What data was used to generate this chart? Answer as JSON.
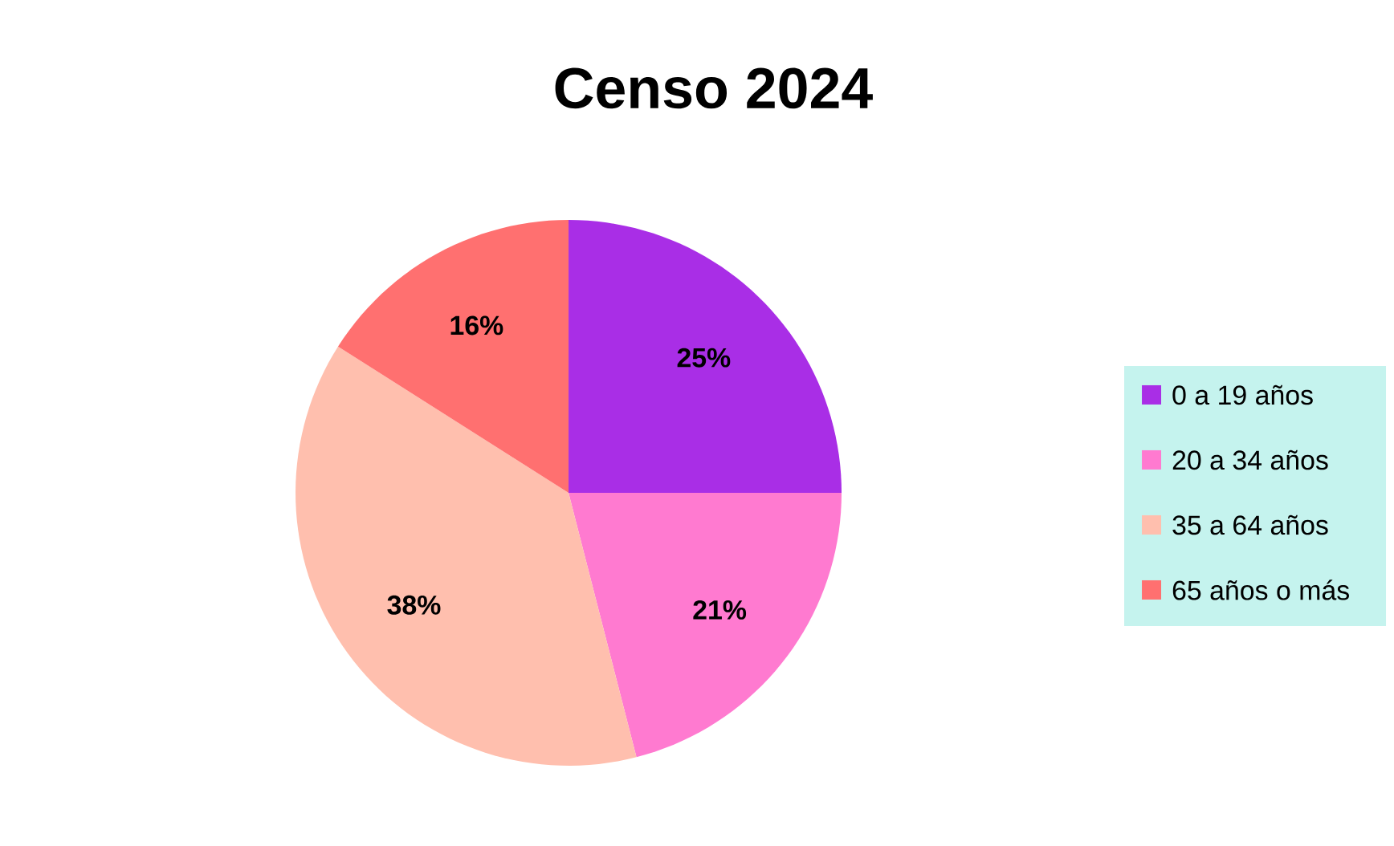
{
  "chart_data": {
    "type": "pie",
    "title": "Censo 2024",
    "categories": [
      "0 a 19 años",
      "20 a 34 años",
      "35 a 64 años",
      "65 años o más"
    ],
    "values": [
      25,
      21,
      38,
      16
    ],
    "value_labels": [
      "25%",
      "21%",
      "38%",
      "16%"
    ],
    "colors": [
      "#a92ee6",
      "#ff7ad0",
      "#ffbfae",
      "#ff7070"
    ],
    "legend": "right"
  }
}
